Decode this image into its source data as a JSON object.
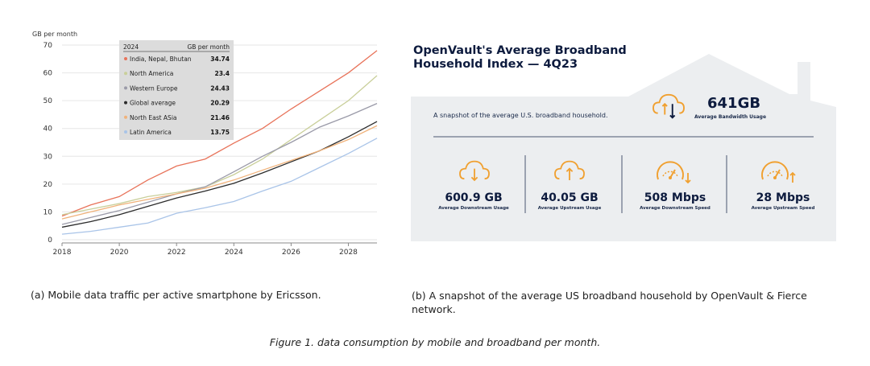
{
  "chart_data": {
    "type": "line",
    "ylabel": "GB per month",
    "ylim": [
      0,
      70
    ],
    "yticks": [
      0,
      10,
      20,
      30,
      40,
      50,
      60,
      70
    ],
    "xlim": [
      2018,
      2029
    ],
    "xticks": [
      2018,
      2020,
      2022,
      2024,
      2026,
      2028
    ],
    "legend": {
      "header_left": "2024",
      "header_right": "GB per month",
      "placement": "top-left"
    },
    "x": [
      2018,
      2019,
      2020,
      2021,
      2022,
      2023,
      2024,
      2025,
      2026,
      2027,
      2028,
      2029
    ],
    "series": [
      {
        "name": "India, Nepal, Bhutan",
        "legend_value": "34.74",
        "color": "#e8735a",
        "values": [
          8.5,
          12.5,
          15.5,
          21.5,
          26.5,
          29,
          34.74,
          40,
          47,
          53.5,
          60,
          68
        ]
      },
      {
        "name": "North America",
        "legend_value": "23.4",
        "color": "#c9cf9a",
        "values": [
          9,
          11,
          13,
          15.5,
          17,
          19,
          23.4,
          29,
          36,
          43,
          50,
          59
        ]
      },
      {
        "name": "Western Europe",
        "legend_value": "24.43",
        "color": "#9a9aa8",
        "values": [
          5.5,
          8,
          10.5,
          13.5,
          16.5,
          19,
          24.43,
          30,
          35,
          40.5,
          44.5,
          49
        ]
      },
      {
        "name": "Global average",
        "legend_value": "20.29",
        "color": "#2b2b2b",
        "values": [
          4.5,
          6.5,
          9,
          12,
          15,
          17.5,
          20.29,
          24,
          28,
          32,
          37,
          42.5
        ]
      },
      {
        "name": "North East ASia",
        "legend_value": "21.46",
        "color": "#f0b27a",
        "values": [
          7.5,
          10,
          12.5,
          14.5,
          16.5,
          18.5,
          21.46,
          25,
          28.5,
          32,
          36,
          41
        ]
      },
      {
        "name": "Latin America",
        "legend_value": "13.75",
        "color": "#a9c4e8",
        "values": [
          2,
          3,
          4.5,
          6,
          9.5,
          11.5,
          13.75,
          17.5,
          21,
          26,
          31,
          36.5
        ]
      }
    ]
  },
  "openvault": {
    "title_line1": "OpenVault's Average Broadband",
    "title_line2": "Household Index — 4Q23",
    "snapshot": "A snapshot of the average U.S. broadband household.",
    "total_value": "641GB",
    "total_label": "Average Bandwidth Usage",
    "accent_color": "#f0a030",
    "metrics": [
      {
        "value": "600.9 GB",
        "label": "Average Downstream Usage",
        "icon": "cloud-download-icon"
      },
      {
        "value": "40.05 GB",
        "label": "Average Upstream Usage",
        "icon": "cloud-upload-icon"
      },
      {
        "value": "508 Mbps",
        "label": "Average Downstream Speed",
        "icon": "speedometer-down-icon"
      },
      {
        "value": "28 Mbps",
        "label": "Average Upstream Speed",
        "icon": "speedometer-up-icon"
      }
    ]
  },
  "captions": {
    "a": "(a) Mobile data traffic per active smartphone by Ericsson.",
    "b": "(b) A snapshot of the average US broadband household by OpenVault & Fierce network.",
    "figure": "Figure 1. data consumption by mobile and broadband per month."
  }
}
